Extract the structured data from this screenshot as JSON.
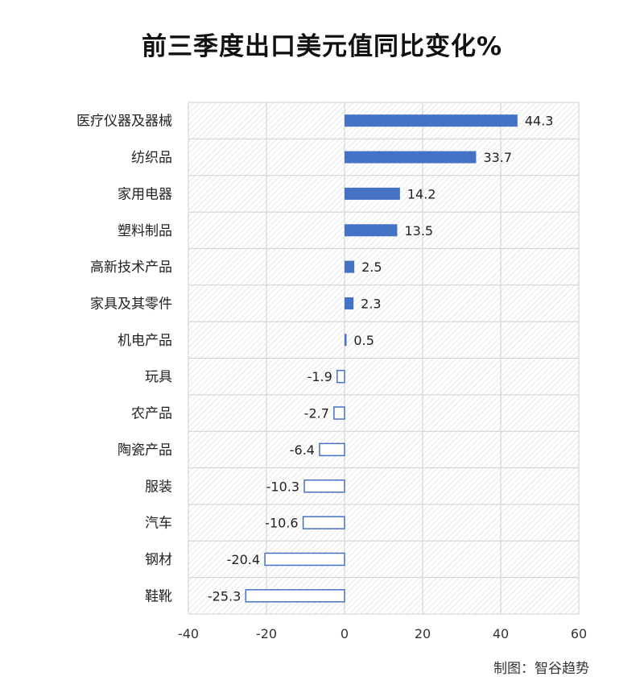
{
  "title": "前三季度出口美元值同比变化%",
  "source_note": "制图：智谷趋势",
  "colors": {
    "positive": "#4472C4",
    "negative_fill": "#ffffff",
    "negative_stroke": "#4472C4"
  },
  "chart_data": {
    "type": "bar",
    "orientation": "horizontal",
    "title": "前三季度出口美元值同比变化%",
    "categories": [
      "医疗仪器及器械",
      "纺织品",
      "家用电器",
      "塑料制品",
      "高新技术产品",
      "家具及其零件",
      "机电产品",
      "玩具",
      "农产品",
      "陶瓷产品",
      "服装",
      "汽车",
      "钢材",
      "鞋靴"
    ],
    "values": [
      44.3,
      33.7,
      14.2,
      13.5,
      2.5,
      2.3,
      0.5,
      -1.9,
      -2.7,
      -6.4,
      -10.3,
      -10.6,
      -20.4,
      -25.3
    ],
    "value_labels": [
      "44.3",
      "33.7",
      "14.2",
      "13.5",
      "2.5",
      "2.3",
      "0.5",
      "-1.9",
      "-2.7",
      "-6.4",
      "-10.3",
      "-10.6",
      "-20.4",
      "-25.3"
    ],
    "xlim": [
      -40,
      60
    ],
    "xticks": [
      -40,
      -20,
      0,
      20,
      40,
      60
    ],
    "xtick_labels": [
      "-40",
      "-20",
      "0",
      "20",
      "40",
      "60"
    ],
    "grid": true,
    "legend": "none"
  }
}
